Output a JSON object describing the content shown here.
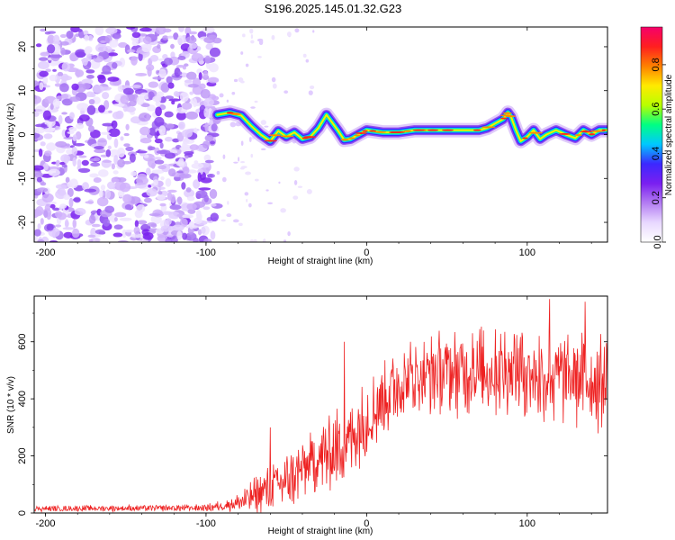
{
  "title": "S196.2025.145.01.32.G23",
  "chart_data": [
    {
      "type": "heatmap",
      "name": "spectrogram",
      "xlabel": "Height of straight line (km)",
      "ylabel": "Frequency (Hz)",
      "xlim": [
        -207,
        150
      ],
      "ylim": [
        -24.5,
        24.5
      ],
      "xticks": [
        -200,
        -100,
        0,
        100
      ],
      "yticks": [
        -20,
        -10,
        0,
        10,
        20
      ],
      "noise_region": [
        -207,
        -93
      ],
      "ridge": {
        "x": [
          -93,
          -85,
          -78,
          -72,
          -66,
          -60,
          -55,
          -50,
          -45,
          -40,
          -35,
          -30,
          -25,
          -22,
          -18,
          -14,
          -10,
          -5,
          0,
          10,
          20,
          30,
          40,
          50,
          60,
          70,
          75,
          80,
          85,
          88,
          90,
          93,
          96,
          100,
          104,
          108,
          112,
          118,
          124,
          130,
          135,
          140,
          145,
          150
        ],
        "y": [
          4.5,
          5,
          4.3,
          2,
          0,
          -1.5,
          0.8,
          -0.5,
          0.5,
          -1,
          -0.5,
          1.5,
          4.5,
          3,
          1,
          -1.2,
          -1,
          0,
          1,
          0.5,
          0.5,
          1,
          1,
          1,
          1,
          1,
          1.5,
          2.5,
          3.5,
          5,
          4,
          1,
          -1.5,
          -0.5,
          1,
          -1,
          0,
          1,
          0,
          -0.8,
          1,
          0,
          1,
          1
        ]
      },
      "colorbar": {
        "label": "Normalized spectral amplitude",
        "ticks": [
          0.0,
          0.2,
          0.4,
          0.6,
          0.8
        ],
        "tick_labels": [
          "0.0",
          "0.2",
          "0.4",
          "0.6",
          "0.8"
        ],
        "range": [
          0,
          0.97
        ],
        "colors": [
          "#ffffff",
          "#e8d8ff",
          "#b37cf2",
          "#7a1ff0",
          "#3c28ff",
          "#00c8ff",
          "#00ff84",
          "#b8ff00",
          "#ffea00",
          "#ff8000",
          "#ff1f1f",
          "#f5006b"
        ]
      }
    },
    {
      "type": "line",
      "name": "snr",
      "xlabel": "Height of straight line (km)",
      "ylabel": "SNR (10 * v/v)",
      "xlim": [
        -207,
        150
      ],
      "ylim": [
        0,
        760
      ],
      "xticks": [
        -200,
        -100,
        0,
        100
      ],
      "yticks": [
        0,
        200,
        400,
        600
      ],
      "color": "#ee2222",
      "envelope": {
        "x": [
          -207,
          -100,
          -90,
          -80,
          -70,
          -60,
          -50,
          -40,
          -30,
          -20,
          -10,
          0,
          10,
          20,
          30,
          50,
          70,
          90,
          110,
          130,
          150
        ],
        "mean": [
          15,
          18,
          25,
          35,
          60,
          90,
          110,
          150,
          190,
          220,
          260,
          330,
          400,
          450,
          480,
          490,
          500,
          510,
          480,
          470,
          460
        ],
        "amp": [
          8,
          10,
          15,
          25,
          50,
          70,
          80,
          90,
          100,
          110,
          110,
          110,
          110,
          110,
          110,
          120,
          130,
          130,
          140,
          140,
          140
        ]
      },
      "spikes": [
        {
          "x": -60,
          "y": 300
        },
        {
          "x": -14,
          "y": 600
        },
        {
          "x": 66,
          "y": 630
        },
        {
          "x": 114,
          "y": 750
        },
        {
          "x": 136,
          "y": 740
        }
      ]
    }
  ]
}
